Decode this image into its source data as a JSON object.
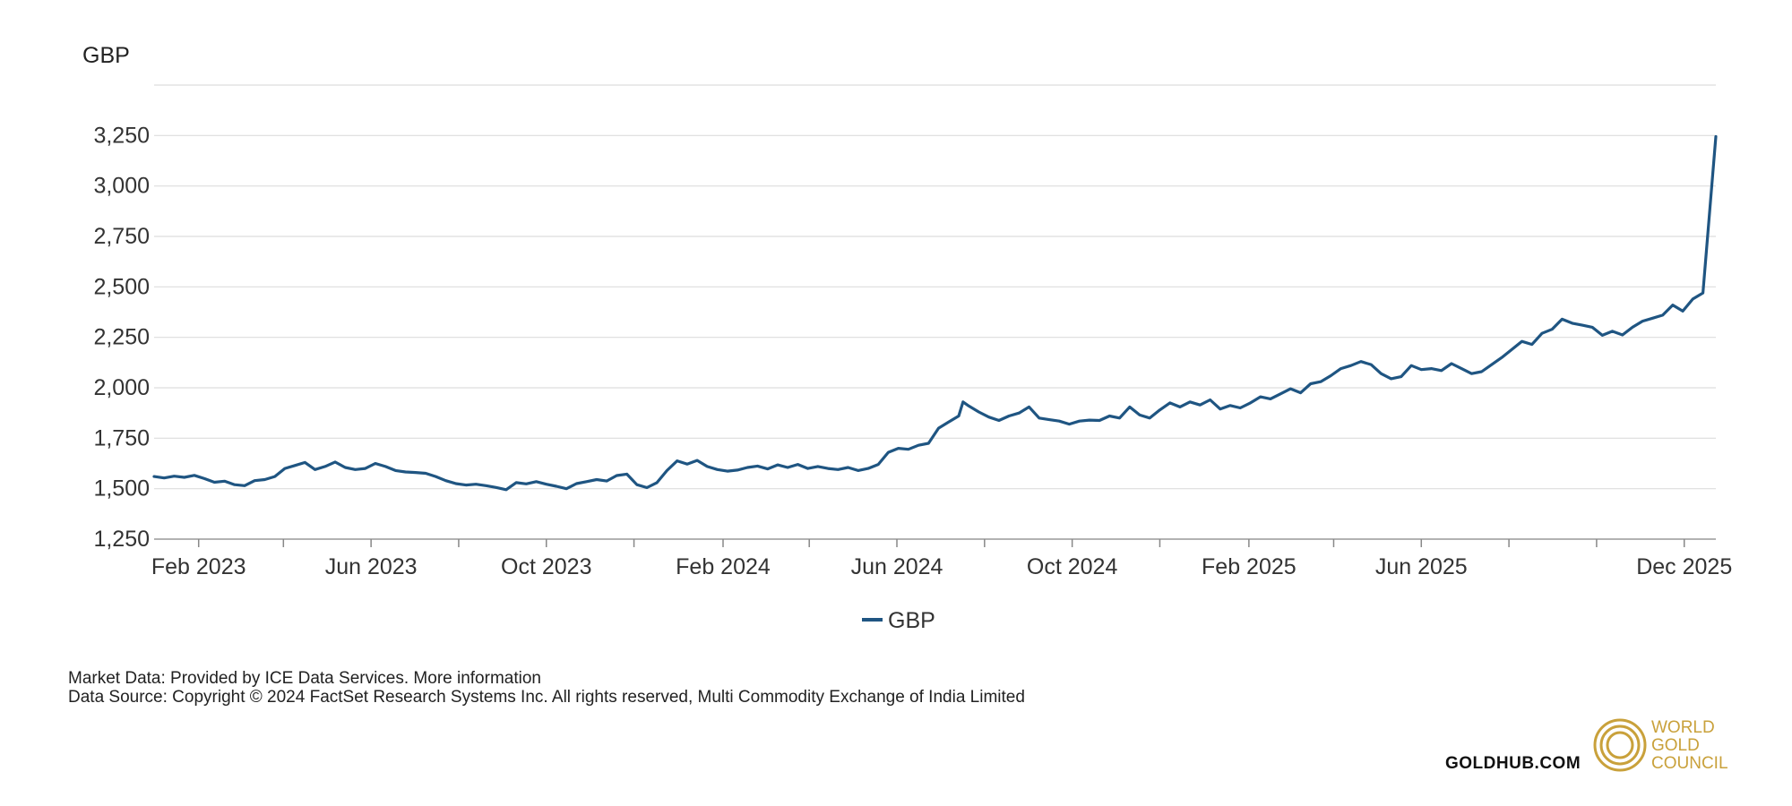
{
  "chart_data": {
    "type": "line",
    "ylabel": "GBP",
    "ylim": [
      1250,
      3500
    ],
    "grid": true,
    "yticks": [
      1250,
      1500,
      1750,
      2000,
      2250,
      2500,
      2750,
      3000,
      3250
    ],
    "ytick_labels": [
      "1,250",
      "1,500",
      "1,750",
      "2,000",
      "2,250",
      "2,500",
      "2,750",
      "3,000",
      "3,250"
    ],
    "xlim": [
      "2023-01-01",
      "2025-12-23"
    ],
    "xticks": [
      {
        "date": "2023-02-01",
        "label": "Feb 2023"
      },
      {
        "date": "2023-06-01",
        "label": "Jun 2023"
      },
      {
        "date": "2023-10-01",
        "label": "Oct 2023"
      },
      {
        "date": "2024-02-01",
        "label": "Feb 2024"
      },
      {
        "date": "2024-06-01",
        "label": "Jun 2024"
      },
      {
        "date": "2024-10-01",
        "label": "Oct 2024"
      },
      {
        "date": "2025-02-01",
        "label": "Feb 2025"
      },
      {
        "date": "2025-06-01",
        "label": "Jun 2025"
      },
      {
        "date": "2025-12-01",
        "label": "Dec 2025"
      }
    ],
    "minor_tick_dates": [
      "2023-04-01",
      "2023-08-01",
      "2023-12-01",
      "2024-04-01",
      "2024-08-01",
      "2024-12-01",
      "2025-04-01",
      "2025-08-01",
      "2025-10-01"
    ],
    "legend_position": "bottom-center",
    "series": [
      {
        "name": "GBP",
        "color": "#1f5582",
        "points": [
          [
            "2023-01-01",
            1560
          ],
          [
            "2023-01-08",
            1553
          ],
          [
            "2023-01-15",
            1562
          ],
          [
            "2023-01-22",
            1556
          ],
          [
            "2023-01-29",
            1566
          ],
          [
            "2023-02-05",
            1550
          ],
          [
            "2023-02-12",
            1532
          ],
          [
            "2023-02-19",
            1537
          ],
          [
            "2023-02-26",
            1520
          ],
          [
            "2023-03-05",
            1515
          ],
          [
            "2023-03-12",
            1540
          ],
          [
            "2023-03-19",
            1545
          ],
          [
            "2023-03-26",
            1560
          ],
          [
            "2023-04-02",
            1600
          ],
          [
            "2023-04-09",
            1615
          ],
          [
            "2023-04-16",
            1630
          ],
          [
            "2023-04-23",
            1595
          ],
          [
            "2023-04-30",
            1610
          ],
          [
            "2023-05-07",
            1632
          ],
          [
            "2023-05-14",
            1605
          ],
          [
            "2023-05-21",
            1595
          ],
          [
            "2023-05-28",
            1600
          ],
          [
            "2023-06-04",
            1625
          ],
          [
            "2023-06-11",
            1610
          ],
          [
            "2023-06-18",
            1590
          ],
          [
            "2023-06-25",
            1583
          ],
          [
            "2023-07-02",
            1580
          ],
          [
            "2023-07-09",
            1576
          ],
          [
            "2023-07-16",
            1560
          ],
          [
            "2023-07-23",
            1540
          ],
          [
            "2023-07-30",
            1525
          ],
          [
            "2023-08-06",
            1518
          ],
          [
            "2023-08-13",
            1522
          ],
          [
            "2023-08-20",
            1515
          ],
          [
            "2023-08-27",
            1506
          ],
          [
            "2023-09-03",
            1495
          ],
          [
            "2023-09-10",
            1530
          ],
          [
            "2023-09-17",
            1524
          ],
          [
            "2023-09-24",
            1535
          ],
          [
            "2023-10-01",
            1522
          ],
          [
            "2023-10-08",
            1512
          ],
          [
            "2023-10-15",
            1500
          ],
          [
            "2023-10-22",
            1525
          ],
          [
            "2023-10-29",
            1535
          ],
          [
            "2023-11-05",
            1545
          ],
          [
            "2023-11-12",
            1538
          ],
          [
            "2023-11-19",
            1565
          ],
          [
            "2023-11-26",
            1572
          ],
          [
            "2023-12-03",
            1520
          ],
          [
            "2023-12-10",
            1505
          ],
          [
            "2023-12-17",
            1530
          ],
          [
            "2023-12-24",
            1590
          ],
          [
            "2023-12-31",
            1638
          ],
          [
            "2024-01-07",
            1622
          ],
          [
            "2024-01-14",
            1640
          ],
          [
            "2024-01-21",
            1610
          ],
          [
            "2024-01-28",
            1595
          ],
          [
            "2024-02-04",
            1587
          ],
          [
            "2024-02-11",
            1592
          ],
          [
            "2024-02-18",
            1605
          ],
          [
            "2024-02-25",
            1612
          ],
          [
            "2024-03-03",
            1598
          ],
          [
            "2024-03-10",
            1618
          ],
          [
            "2024-03-17",
            1605
          ],
          [
            "2024-03-24",
            1620
          ],
          [
            "2024-03-31",
            1600
          ],
          [
            "2024-04-07",
            1610
          ],
          [
            "2024-04-14",
            1600
          ],
          [
            "2024-04-21",
            1595
          ],
          [
            "2024-04-28",
            1605
          ],
          [
            "2024-05-05",
            1590
          ],
          [
            "2024-05-12",
            1600
          ],
          [
            "2024-05-19",
            1620
          ],
          [
            "2024-05-26",
            1680
          ],
          [
            "2024-06-02",
            1700
          ],
          [
            "2024-06-09",
            1695
          ],
          [
            "2024-06-16",
            1715
          ],
          [
            "2024-06-23",
            1725
          ],
          [
            "2024-06-30",
            1800
          ],
          [
            "2024-07-07",
            1830
          ],
          [
            "2024-07-14",
            1860
          ],
          [
            "2024-07-17",
            1930
          ],
          [
            "2024-07-21",
            1910
          ],
          [
            "2024-07-28",
            1880
          ],
          [
            "2024-08-04",
            1855
          ],
          [
            "2024-08-11",
            1838
          ],
          [
            "2024-08-18",
            1860
          ],
          [
            "2024-08-25",
            1875
          ],
          [
            "2024-09-01",
            1905
          ],
          [
            "2024-09-08",
            1850
          ],
          [
            "2024-09-15",
            1842
          ],
          [
            "2024-09-22",
            1835
          ],
          [
            "2024-09-29",
            1820
          ],
          [
            "2024-10-06",
            1835
          ],
          [
            "2024-10-13",
            1840
          ],
          [
            "2024-10-20",
            1838
          ],
          [
            "2024-10-27",
            1860
          ],
          [
            "2024-11-03",
            1850
          ],
          [
            "2024-11-10",
            1905
          ],
          [
            "2024-11-17",
            1865
          ],
          [
            "2024-11-24",
            1850
          ],
          [
            "2024-12-01",
            1890
          ],
          [
            "2024-12-08",
            1925
          ],
          [
            "2024-12-15",
            1905
          ],
          [
            "2024-12-22",
            1930
          ],
          [
            "2024-12-29",
            1915
          ],
          [
            "2025-01-05",
            1940
          ],
          [
            "2025-01-12",
            1895
          ],
          [
            "2025-01-19",
            1912
          ],
          [
            "2025-01-26",
            1900
          ],
          [
            "2025-02-02",
            1925
          ],
          [
            "2025-02-09",
            1955
          ],
          [
            "2025-02-16",
            1945
          ],
          [
            "2025-02-23",
            1970
          ],
          [
            "2025-03-02",
            1995
          ],
          [
            "2025-03-09",
            1975
          ],
          [
            "2025-03-16",
            2020
          ],
          [
            "2025-03-23",
            2030
          ],
          [
            "2025-03-30",
            2060
          ],
          [
            "2025-04-06",
            2095
          ],
          [
            "2025-04-13",
            2110
          ],
          [
            "2025-04-20",
            2130
          ],
          [
            "2025-04-27",
            2115
          ],
          [
            "2025-05-04",
            2070
          ],
          [
            "2025-05-11",
            2045
          ],
          [
            "2025-05-18",
            2055
          ],
          [
            "2025-05-25",
            2110
          ],
          [
            "2025-06-01",
            2090
          ],
          [
            "2025-06-08",
            2095
          ],
          [
            "2025-06-15",
            2085
          ],
          [
            "2025-06-22",
            2120
          ],
          [
            "2025-06-29",
            2095
          ],
          [
            "2025-07-06",
            2070
          ],
          [
            "2025-07-13",
            2080
          ],
          [
            "2025-07-20",
            2115
          ],
          [
            "2025-07-27",
            2150
          ],
          [
            "2025-08-03",
            2190
          ],
          [
            "2025-08-10",
            2230
          ],
          [
            "2025-08-17",
            2215
          ],
          [
            "2025-08-24",
            2270
          ],
          [
            "2025-08-31",
            2290
          ],
          [
            "2025-09-07",
            2340
          ],
          [
            "2025-09-14",
            2320
          ],
          [
            "2025-09-21",
            2310
          ],
          [
            "2025-09-28",
            2300
          ],
          [
            "2025-10-05",
            2260
          ],
          [
            "2025-10-12",
            2280
          ],
          [
            "2025-10-19",
            2262
          ],
          [
            "2025-10-26",
            2300
          ],
          [
            "2025-11-02",
            2330
          ],
          [
            "2025-11-09",
            2345
          ],
          [
            "2025-11-16",
            2360
          ],
          [
            "2025-11-23",
            2410
          ],
          [
            "2025-11-30",
            2380
          ],
          [
            "2025-12-07",
            2440
          ],
          [
            "2025-12-14",
            2470
          ],
          [
            "2025-12-23",
            3245
          ]
        ]
      }
    ]
  },
  "legend": {
    "label": "GBP"
  },
  "footer": {
    "market_data": "Market Data: Provided by ICE Data Services. More information",
    "data_source": "Data Source: Copyright © 2024 FactSet Research Systems Inc. All rights reserved, Multi Commodity Exchange of India Limited"
  },
  "brand": {
    "url": "GOLDHUB.COM",
    "name_lines": [
      "WORLD",
      "GOLD",
      "COUNCIL"
    ],
    "color": "#c9a13b"
  }
}
